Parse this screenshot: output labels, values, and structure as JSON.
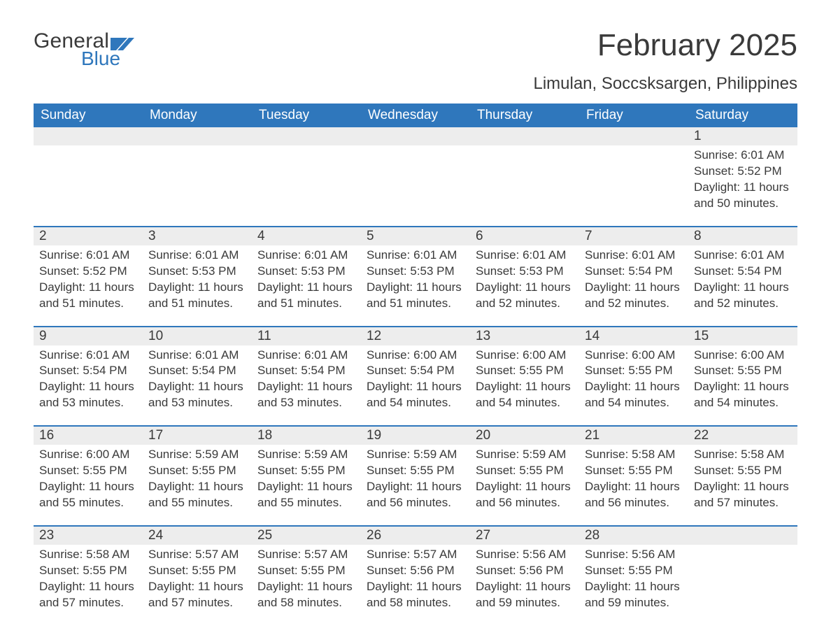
{
  "logo": {
    "word1": "General",
    "word2": "Blue",
    "brand_color": "#2f77bc"
  },
  "title": "February 2025",
  "subtitle": "Limulan, Soccsksargen, Philippines",
  "colors": {
    "header_bg": "#2f77bc",
    "header_text": "#ffffff",
    "numrow_bg": "#ededed",
    "row_border": "#2f77bc",
    "text": "#3a3a3a",
    "page_bg": "#ffffff"
  },
  "day_headers": [
    "Sunday",
    "Monday",
    "Tuesday",
    "Wednesday",
    "Thursday",
    "Friday",
    "Saturday"
  ],
  "columns": 7,
  "weeks": [
    {
      "days": [
        null,
        null,
        null,
        null,
        null,
        null,
        {
          "n": "1",
          "sunrise": "Sunrise: 6:01 AM",
          "sunset": "Sunset: 5:52 PM",
          "daylight": "Daylight: 11 hours and 50 minutes."
        }
      ]
    },
    {
      "days": [
        {
          "n": "2",
          "sunrise": "Sunrise: 6:01 AM",
          "sunset": "Sunset: 5:52 PM",
          "daylight": "Daylight: 11 hours and 51 minutes."
        },
        {
          "n": "3",
          "sunrise": "Sunrise: 6:01 AM",
          "sunset": "Sunset: 5:53 PM",
          "daylight": "Daylight: 11 hours and 51 minutes."
        },
        {
          "n": "4",
          "sunrise": "Sunrise: 6:01 AM",
          "sunset": "Sunset: 5:53 PM",
          "daylight": "Daylight: 11 hours and 51 minutes."
        },
        {
          "n": "5",
          "sunrise": "Sunrise: 6:01 AM",
          "sunset": "Sunset: 5:53 PM",
          "daylight": "Daylight: 11 hours and 51 minutes."
        },
        {
          "n": "6",
          "sunrise": "Sunrise: 6:01 AM",
          "sunset": "Sunset: 5:53 PM",
          "daylight": "Daylight: 11 hours and 52 minutes."
        },
        {
          "n": "7",
          "sunrise": "Sunrise: 6:01 AM",
          "sunset": "Sunset: 5:54 PM",
          "daylight": "Daylight: 11 hours and 52 minutes."
        },
        {
          "n": "8",
          "sunrise": "Sunrise: 6:01 AM",
          "sunset": "Sunset: 5:54 PM",
          "daylight": "Daylight: 11 hours and 52 minutes."
        }
      ]
    },
    {
      "days": [
        {
          "n": "9",
          "sunrise": "Sunrise: 6:01 AM",
          "sunset": "Sunset: 5:54 PM",
          "daylight": "Daylight: 11 hours and 53 minutes."
        },
        {
          "n": "10",
          "sunrise": "Sunrise: 6:01 AM",
          "sunset": "Sunset: 5:54 PM",
          "daylight": "Daylight: 11 hours and 53 minutes."
        },
        {
          "n": "11",
          "sunrise": "Sunrise: 6:01 AM",
          "sunset": "Sunset: 5:54 PM",
          "daylight": "Daylight: 11 hours and 53 minutes."
        },
        {
          "n": "12",
          "sunrise": "Sunrise: 6:00 AM",
          "sunset": "Sunset: 5:54 PM",
          "daylight": "Daylight: 11 hours and 54 minutes."
        },
        {
          "n": "13",
          "sunrise": "Sunrise: 6:00 AM",
          "sunset": "Sunset: 5:55 PM",
          "daylight": "Daylight: 11 hours and 54 minutes."
        },
        {
          "n": "14",
          "sunrise": "Sunrise: 6:00 AM",
          "sunset": "Sunset: 5:55 PM",
          "daylight": "Daylight: 11 hours and 54 minutes."
        },
        {
          "n": "15",
          "sunrise": "Sunrise: 6:00 AM",
          "sunset": "Sunset: 5:55 PM",
          "daylight": "Daylight: 11 hours and 54 minutes."
        }
      ]
    },
    {
      "days": [
        {
          "n": "16",
          "sunrise": "Sunrise: 6:00 AM",
          "sunset": "Sunset: 5:55 PM",
          "daylight": "Daylight: 11 hours and 55 minutes."
        },
        {
          "n": "17",
          "sunrise": "Sunrise: 5:59 AM",
          "sunset": "Sunset: 5:55 PM",
          "daylight": "Daylight: 11 hours and 55 minutes."
        },
        {
          "n": "18",
          "sunrise": "Sunrise: 5:59 AM",
          "sunset": "Sunset: 5:55 PM",
          "daylight": "Daylight: 11 hours and 55 minutes."
        },
        {
          "n": "19",
          "sunrise": "Sunrise: 5:59 AM",
          "sunset": "Sunset: 5:55 PM",
          "daylight": "Daylight: 11 hours and 56 minutes."
        },
        {
          "n": "20",
          "sunrise": "Sunrise: 5:59 AM",
          "sunset": "Sunset: 5:55 PM",
          "daylight": "Daylight: 11 hours and 56 minutes."
        },
        {
          "n": "21",
          "sunrise": "Sunrise: 5:58 AM",
          "sunset": "Sunset: 5:55 PM",
          "daylight": "Daylight: 11 hours and 56 minutes."
        },
        {
          "n": "22",
          "sunrise": "Sunrise: 5:58 AM",
          "sunset": "Sunset: 5:55 PM",
          "daylight": "Daylight: 11 hours and 57 minutes."
        }
      ]
    },
    {
      "days": [
        {
          "n": "23",
          "sunrise": "Sunrise: 5:58 AM",
          "sunset": "Sunset: 5:55 PM",
          "daylight": "Daylight: 11 hours and 57 minutes."
        },
        {
          "n": "24",
          "sunrise": "Sunrise: 5:57 AM",
          "sunset": "Sunset: 5:55 PM",
          "daylight": "Daylight: 11 hours and 57 minutes."
        },
        {
          "n": "25",
          "sunrise": "Sunrise: 5:57 AM",
          "sunset": "Sunset: 5:55 PM",
          "daylight": "Daylight: 11 hours and 58 minutes."
        },
        {
          "n": "26",
          "sunrise": "Sunrise: 5:57 AM",
          "sunset": "Sunset: 5:56 PM",
          "daylight": "Daylight: 11 hours and 58 minutes."
        },
        {
          "n": "27",
          "sunrise": "Sunrise: 5:56 AM",
          "sunset": "Sunset: 5:56 PM",
          "daylight": "Daylight: 11 hours and 59 minutes."
        },
        {
          "n": "28",
          "sunrise": "Sunrise: 5:56 AM",
          "sunset": "Sunset: 5:55 PM",
          "daylight": "Daylight: 11 hours and 59 minutes."
        },
        null
      ]
    }
  ]
}
